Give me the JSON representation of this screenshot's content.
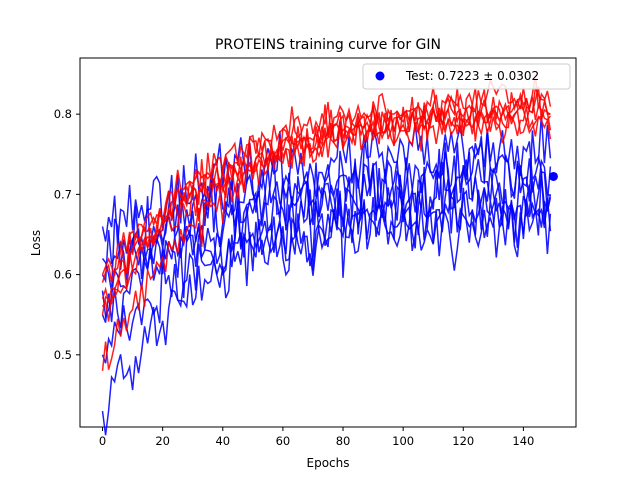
{
  "chart_data": {
    "type": "line",
    "title": "PROTEINS training curve for GIN",
    "xlabel": "Epochs",
    "ylabel": "Loss",
    "xlim": [
      -7.5,
      157.5
    ],
    "ylim": [
      0.41,
      0.87
    ],
    "xticks": [
      0,
      20,
      40,
      60,
      80,
      100,
      120,
      140
    ],
    "yticks": [
      0.5,
      0.6,
      0.7,
      0.8
    ],
    "grid": false,
    "legend_position": "top-right",
    "legend": [
      {
        "label": "Test: 0.7223 ± 0.0302",
        "marker": "circle",
        "color": "#0000ff"
      }
    ],
    "test_point": {
      "x": 150,
      "y": 0.7223
    },
    "series_colors": {
      "train": "#ff0000",
      "validation": "#0000ff"
    },
    "epochs": 150,
    "red_runs": [
      {
        "start": 0.55,
        "end": 0.8,
        "noise": 0.012,
        "seed": 11
      },
      {
        "start": 0.48,
        "end": 0.81,
        "noise": 0.014,
        "seed": 12
      },
      {
        "start": 0.57,
        "end": 0.79,
        "noise": 0.012,
        "seed": 13
      },
      {
        "start": 0.59,
        "end": 0.82,
        "noise": 0.013,
        "seed": 14
      },
      {
        "start": 0.6,
        "end": 0.8,
        "noise": 0.012,
        "seed": 15
      },
      {
        "start": 0.56,
        "end": 0.81,
        "noise": 0.015,
        "seed": 16
      }
    ],
    "blue_runs": [
      {
        "start": 0.43,
        "end": 0.69,
        "noise": 0.022,
        "seed": 21
      },
      {
        "start": 0.6,
        "end": 0.72,
        "noise": 0.022,
        "seed": 22
      },
      {
        "start": 0.66,
        "end": 0.75,
        "noise": 0.02,
        "seed": 23
      },
      {
        "start": 0.58,
        "end": 0.66,
        "noise": 0.022,
        "seed": 24
      },
      {
        "start": 0.62,
        "end": 0.7,
        "noise": 0.024,
        "seed": 25
      },
      {
        "start": 0.55,
        "end": 0.73,
        "noise": 0.022,
        "seed": 26
      },
      {
        "start": 0.5,
        "end": 0.68,
        "noise": 0.02,
        "seed": 27
      }
    ]
  }
}
